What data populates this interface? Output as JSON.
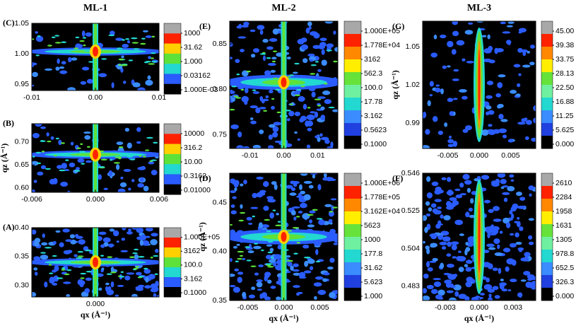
{
  "chart_data": [
    {
      "type": "heatmap",
      "title": "ML-1",
      "panel_label": "(C)",
      "xlim": [
        -0.01,
        0.01
      ],
      "xticks": [
        -0.01,
        {
          "value": 0,
          "label": "0.00"
        },
        0.01
      ],
      "ylim": [
        0.94,
        1.05
      ],
      "yticks": [
        0.95,
        {
          "value": 1,
          "label": "1.00"
        },
        1.05
      ],
      "colorbar": [
        1000,
        31.62,
        {
          "value": 1,
          "label": "1.000"
        },
        0.03162,
        {
          "value": 0.001,
          "label": "1.000E-03"
        }
      ],
      "colors": [
        "#a8a8a8",
        "#ff2200",
        "#ffd000",
        "#5ee23a",
        "#22d8d0",
        "#2a5cff",
        "#000000"
      ]
    },
    {
      "type": "heatmap",
      "panel_label": "(B)",
      "y_label": "qz (Å⁻¹)",
      "xlim": [
        -0.006,
        0.006
      ],
      "xticks": [
        -0.006,
        {
          "value": 0,
          "label": "0.000"
        },
        0.006
      ],
      "ylim": [
        0.59,
        0.74
      ],
      "yticks": [
        {
          "value": 0.6,
          "label": "0.60"
        },
        0.65,
        {
          "value": 0.7,
          "label": "0.70"
        }
      ],
      "colorbar": [
        10000,
        316.2,
        {
          "value": 10,
          "label": "10.00"
        },
        0.3162,
        {
          "value": 0.01,
          "label": "0.01000"
        }
      ],
      "colors": [
        "#a8a8a8",
        "#ff2200",
        "#ffd000",
        "#5ee23a",
        "#22d8d0",
        "#2a5cff",
        "#000000"
      ]
    },
    {
      "type": "heatmap",
      "panel_label": "(A)",
      "x_label": "qx (Å⁻¹)",
      "xlim": [
        -0.01,
        0.01
      ],
      "xticks": [
        {
          "value": 0,
          "label": "0.000"
        }
      ],
      "ylim": [
        0.28,
        0.4
      ],
      "yticks": [
        {
          "value": 0.3,
          "label": "0.30"
        },
        0.35,
        {
          "value": 0.4,
          "label": "0.40"
        }
      ],
      "colorbar": [
        {
          "value": 100000,
          "label": "1.000E+05"
        },
        3162,
        {
          "value": 100,
          "label": "100.0"
        },
        3.162,
        {
          "value": 0.1,
          "label": "0.1000"
        }
      ],
      "colors": [
        "#a8a8a8",
        "#ff2200",
        "#ffd000",
        "#5ee23a",
        "#22d8d0",
        "#2a5cff",
        "#000000"
      ]
    },
    {
      "type": "heatmap",
      "title": "ML-2",
      "panel_label": "(E)",
      "xlim": [
        -0.016,
        0.016
      ],
      "xticks": [
        -0.01,
        {
          "value": 0,
          "label": "0.00"
        },
        0.01
      ],
      "ylim": [
        0.735,
        0.875
      ],
      "yticks": [
        0.75,
        {
          "value": 0.8,
          "label": "0.80"
        },
        0.85
      ],
      "colorbar": [
        {
          "value": 100000,
          "label": "1.000E+05"
        },
        {
          "value": 17780,
          "label": "1.778E+04"
        },
        3162,
        562.3,
        {
          "value": 100,
          "label": "100.0"
        },
        17.78,
        3.162,
        0.5623,
        {
          "value": 0.1,
          "label": "0.1000"
        }
      ],
      "colors": [
        "#a8a8a8",
        "#ff2200",
        "#ff8800",
        "#ffee00",
        "#66e23a",
        "#6ff0a0",
        "#22d8d0",
        "#3a8cff",
        "#2040e0",
        "#000000"
      ]
    },
    {
      "type": "heatmap",
      "panel_label": "(D)",
      "y_label": "qz (Å⁻¹)",
      "x_label": "qx (Å⁻¹)",
      "xlim": [
        -0.0075,
        0.0075
      ],
      "xticks": [
        -0.005,
        {
          "value": 0,
          "label": "0.000"
        },
        0.005
      ],
      "ylim": [
        0.35,
        0.48
      ],
      "yticks": [
        0.35,
        {
          "value": 0.4,
          "label": "0.40"
        },
        0.45
      ],
      "colorbar": [
        {
          "value": 1000000,
          "label": "1.000E+06"
        },
        {
          "value": 177800,
          "label": "1.778E+05"
        },
        {
          "value": 31620,
          "label": "3.162E+04"
        },
        5623,
        1000,
        177.8,
        31.62,
        5.623,
        {
          "value": 1,
          "label": "1.000"
        }
      ],
      "colors": [
        "#a8a8a8",
        "#ff2200",
        "#ff8800",
        "#ffee00",
        "#66e23a",
        "#6ff0a0",
        "#22d8d0",
        "#3a8cff",
        "#2040e0",
        "#000000"
      ]
    },
    {
      "type": "heatmap",
      "title": "ML-3",
      "panel_label": "(G)",
      "y_label": "qz (Å⁻¹)",
      "xlim": [
        -0.009,
        0.009
      ],
      "xticks": [
        -0.005,
        {
          "value": 0,
          "label": "0.000"
        },
        0.005
      ],
      "ylim": [
        0.97,
        1.07
      ],
      "yticks": [
        0.99,
        1.02,
        1.05
      ],
      "colorbar": [
        {
          "value": 45,
          "label": "45.00"
        },
        39.38,
        33.75,
        28.13,
        {
          "value": 22.5,
          "label": "22.50"
        },
        16.88,
        11.25,
        5.625,
        {
          "value": 0,
          "label": "0.000"
        }
      ],
      "colors": [
        "#a8a8a8",
        "#ff2200",
        "#ff8800",
        "#ffee00",
        "#66e23a",
        "#6ff0a0",
        "#22d8d0",
        "#3a8cff",
        "#2040e0",
        "#000000"
      ]
    },
    {
      "type": "heatmap",
      "panel_label": "(F)",
      "x_label": "qx (Å⁻¹)",
      "xlim": [
        -0.005,
        0.005
      ],
      "xticks": [
        -0.003,
        {
          "value": 0,
          "label": "0.000"
        },
        0.003
      ],
      "ylim": [
        0.475,
        0.546
      ],
      "yticks": [
        0.483,
        0.504,
        0.525,
        0.546
      ],
      "colorbar": [
        2610,
        2284,
        1958,
        1631,
        1305,
        978.8,
        652.5,
        326.3,
        {
          "value": 0,
          "label": "0.000"
        }
      ],
      "colors": [
        "#a8a8a8",
        "#ff2200",
        "#ff8800",
        "#ffee00",
        "#66e23a",
        "#6ff0a0",
        "#22d8d0",
        "#3a8cff",
        "#2040e0",
        "#000000"
      ]
    }
  ]
}
